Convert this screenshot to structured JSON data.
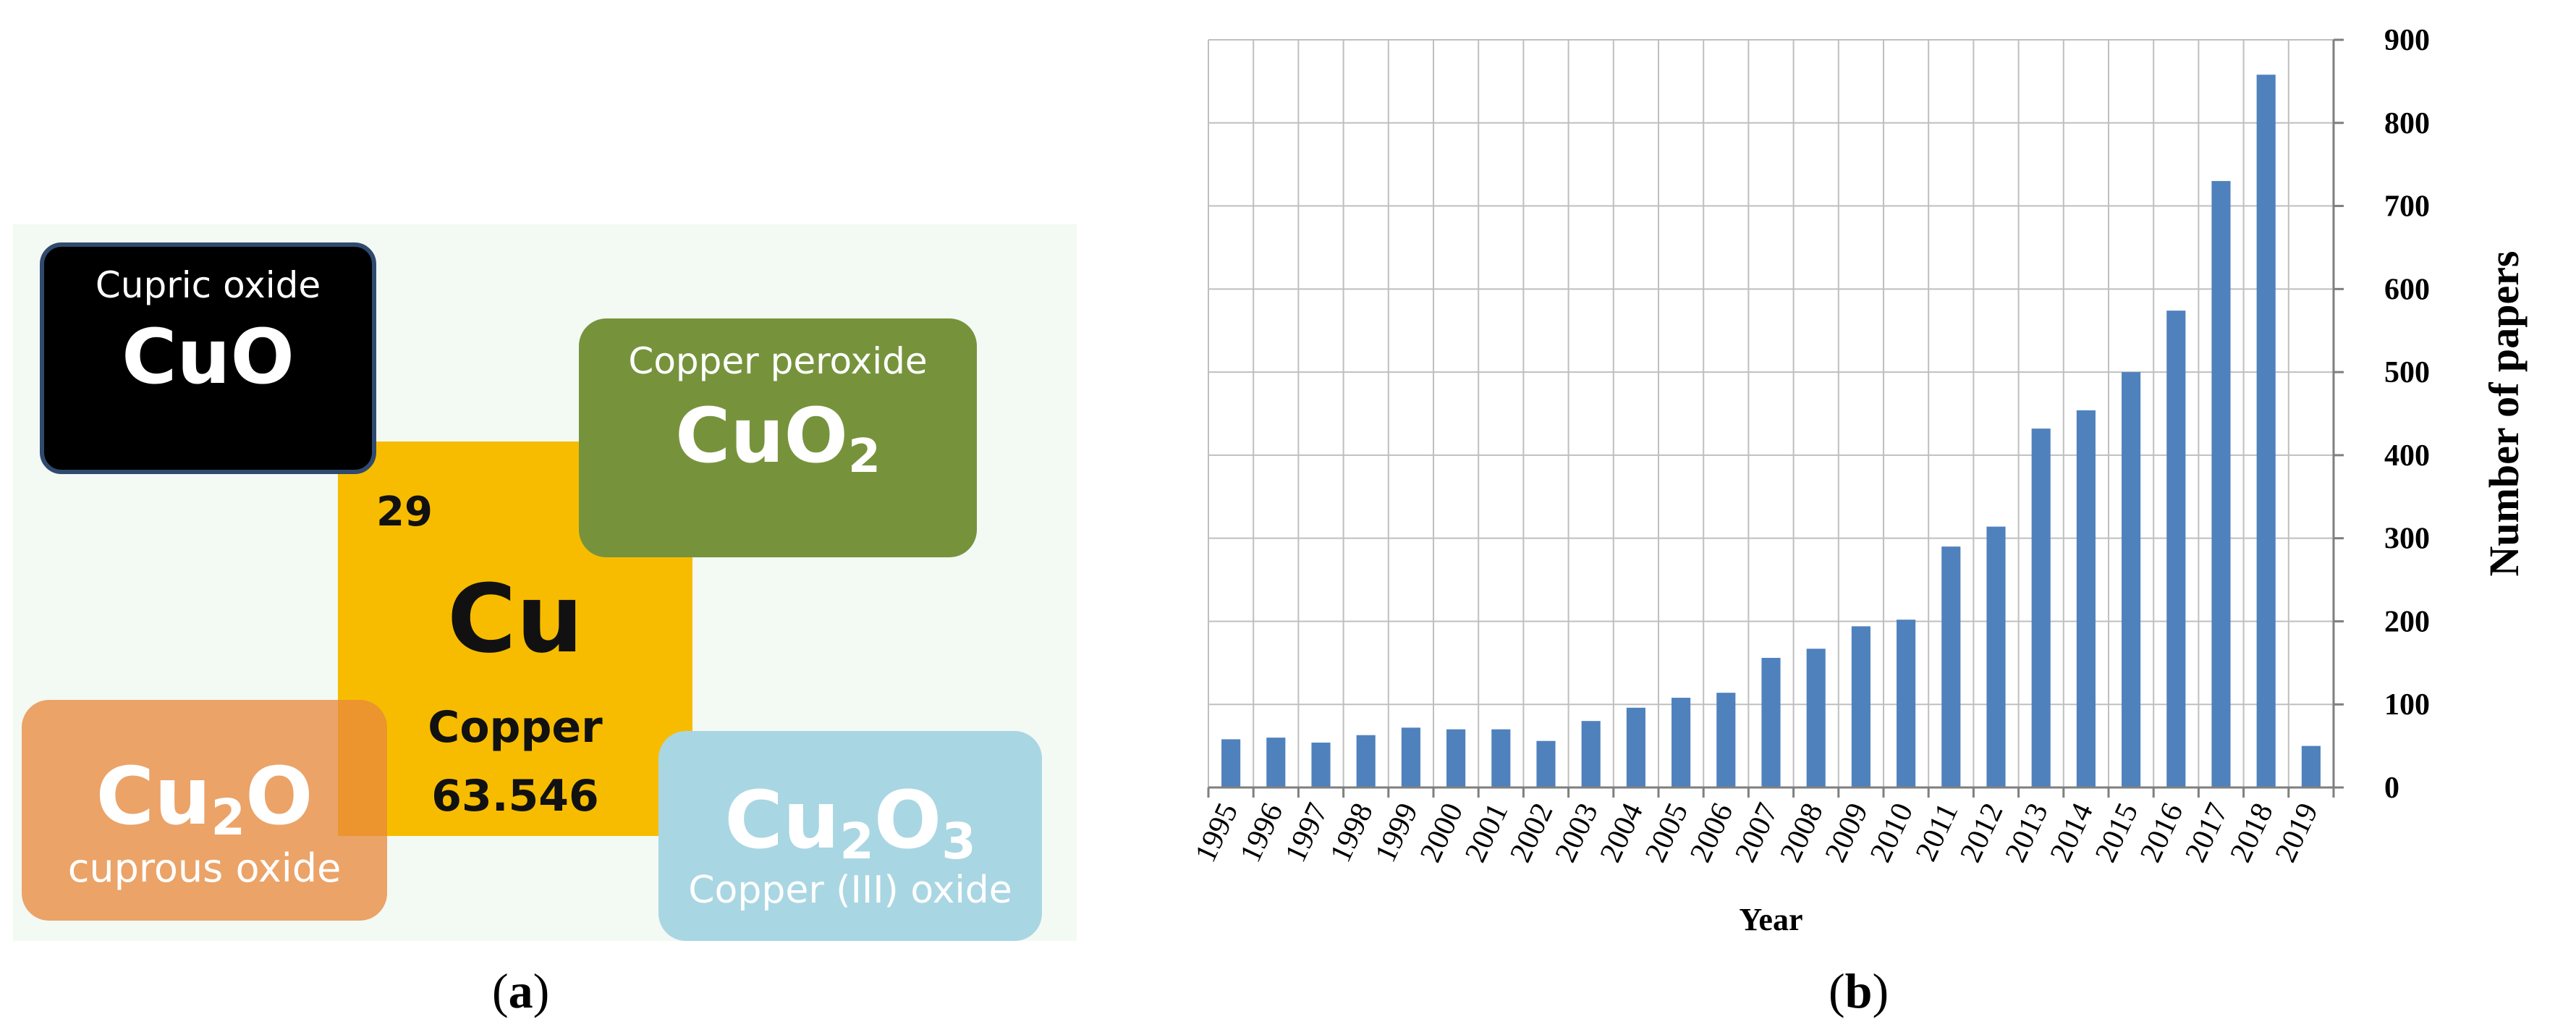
{
  "panel_a": {
    "label": "a",
    "element": {
      "number": "29",
      "symbol": "Cu",
      "name": "Copper",
      "mass": "63.546"
    },
    "oxides": [
      {
        "name": "Cupric oxide",
        "formula": "CuO",
        "color": "#000000"
      },
      {
        "name": "Copper peroxide",
        "formula_parts": [
          "CuO",
          "2"
        ],
        "color": "#76933c"
      },
      {
        "name": "cuprous oxide",
        "formula_parts": [
          "Cu",
          "2",
          "O"
        ],
        "color": "#e9883c"
      },
      {
        "name": "Copper (III) oxide",
        "formula_parts": [
          "Cu",
          "2",
          "O",
          "3"
        ],
        "color": "#a9d6e3"
      }
    ],
    "element_color": "#f7bc00"
  },
  "panel_b": {
    "label": "b"
  },
  "chart_data": {
    "type": "bar",
    "xlabel": "Year",
    "ylabel": "Number of papers",
    "categories": [
      "1995",
      "1996",
      "1997",
      "1998",
      "1999",
      "2000",
      "2001",
      "2002",
      "2003",
      "2004",
      "2005",
      "2006",
      "2007",
      "2008",
      "2009",
      "2010",
      "2011",
      "2012",
      "2013",
      "2014",
      "2015",
      "2016",
      "2017",
      "2018",
      "2019"
    ],
    "values": [
      58,
      60,
      54,
      63,
      72,
      70,
      70,
      56,
      80,
      96,
      108,
      114,
      156,
      167,
      194,
      202,
      290,
      314,
      432,
      454,
      500,
      574,
      730,
      858,
      50
    ],
    "ylim": [
      0,
      900
    ],
    "yticks": [
      0,
      100,
      200,
      300,
      400,
      500,
      600,
      700,
      800,
      900
    ],
    "y_axis_position": "right",
    "grid": true,
    "bar_color": "#4f81bd"
  }
}
